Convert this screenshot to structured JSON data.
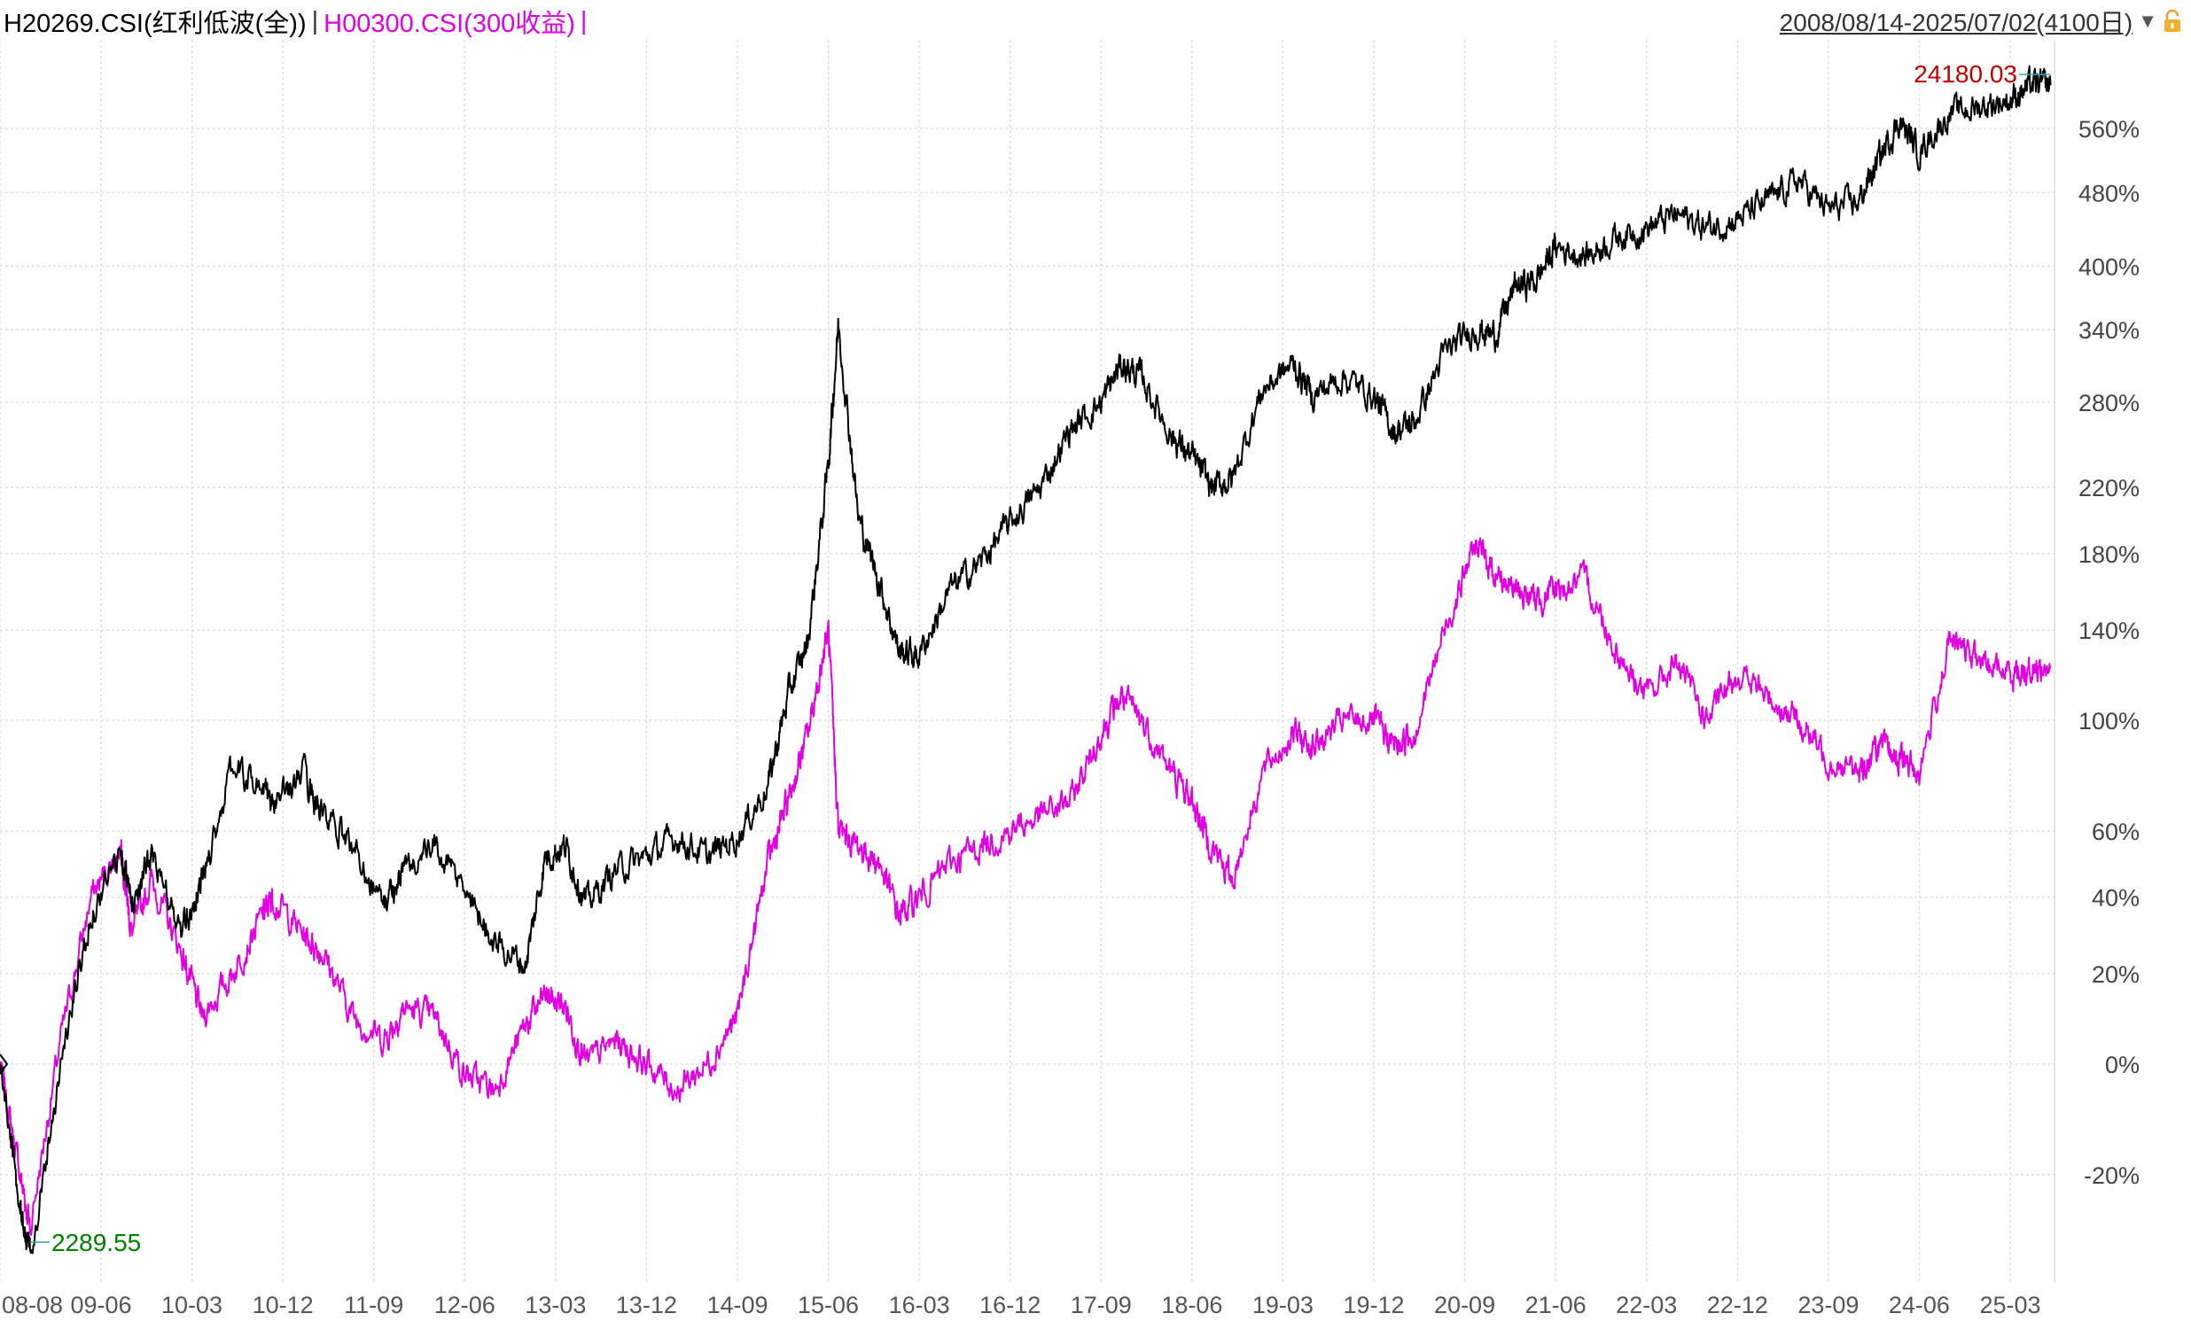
{
  "header": {
    "series1_name": "H20269.CSI(红利低波(全))",
    "separator": "|",
    "series2_name": "H00300.CSI(300收益)",
    "separator2": "|",
    "date_range": "2008/08/14-2025/07/02(4100日)",
    "dropdown_icon": "▼",
    "lock_icon": "lock-icon"
  },
  "colors": {
    "series1": "#000000",
    "series2": "#e000e0",
    "max_label": "#c00000",
    "min_label": "#008000",
    "grid": "#d9d9d9",
    "axis_text": "#555555"
  },
  "chart_data": {
    "type": "line",
    "y_scale": "log",
    "y_unit": "percent change from start",
    "ylim": [
      -33,
      620
    ],
    "y_ticks": [
      "560%",
      "480%",
      "400%",
      "340%",
      "280%",
      "220%",
      "180%",
      "140%",
      "100%",
      "60%",
      "40%",
      "20%",
      "0%",
      "-20%"
    ],
    "x_ticks": [
      "08-08",
      "09-06",
      "10-03",
      "10-12",
      "11-09",
      "12-06",
      "13-03",
      "13-12",
      "14-09",
      "15-06",
      "16-03",
      "16-12",
      "17-09",
      "18-06",
      "19-03",
      "19-12",
      "20-09",
      "21-06",
      "22-03",
      "22-12",
      "23-09",
      "24-06",
      "25-03"
    ],
    "grid": true,
    "annotations": {
      "max_value": "24180.03",
      "min_value": "2289.55"
    },
    "series": [
      {
        "name": "H20269.CSI(红利低波(全))",
        "x": [
          "2008-08",
          "2008-10",
          "2008-11",
          "2009-02",
          "2009-05",
          "2009-08",
          "2009-09",
          "2009-11",
          "2010-02",
          "2010-04",
          "2010-07",
          "2010-10",
          "2010-11",
          "2011-02",
          "2011-04",
          "2011-07",
          "2011-10",
          "2011-12",
          "2012-03",
          "2012-06",
          "2012-09",
          "2012-12",
          "2013-02",
          "2013-04",
          "2013-06",
          "2013-09",
          "2013-12",
          "2014-03",
          "2014-06",
          "2014-09",
          "2014-12",
          "2015-02",
          "2015-04",
          "2015-06",
          "2015-07",
          "2015-09",
          "2015-11",
          "2016-01",
          "2016-03",
          "2016-06",
          "2016-09",
          "2016-12",
          "2017-03",
          "2017-06",
          "2017-09",
          "2017-11",
          "2018-01",
          "2018-04",
          "2018-06",
          "2018-08",
          "2018-10",
          "2019-01",
          "2019-04",
          "2019-06",
          "2019-09",
          "2019-12",
          "2020-02",
          "2020-04",
          "2020-07",
          "2020-10",
          "2020-12",
          "2021-02",
          "2021-04",
          "2021-06",
          "2021-09",
          "2021-12",
          "2022-03",
          "2022-06",
          "2022-09",
          "2022-12",
          "2023-03",
          "2023-06",
          "2023-09",
          "2023-12",
          "2024-02",
          "2024-04",
          "2024-06",
          "2024-09",
          "2024-12",
          "2025-03",
          "2025-05",
          "2025-07"
        ],
        "values": [
          0,
          -25,
          -32,
          0,
          35,
          55,
          38,
          52,
          30,
          45,
          82,
          75,
          68,
          80,
          65,
          55,
          38,
          48,
          55,
          42,
          28,
          22,
          52,
          55,
          38,
          48,
          52,
          58,
          52,
          58,
          75,
          110,
          135,
          235,
          345,
          200,
          165,
          130,
          128,
          160,
          175,
          198,
          220,
          260,
          280,
          310,
          300,
          255,
          240,
          220,
          225,
          290,
          310,
          285,
          300,
          285,
          258,
          265,
          320,
          340,
          335,
          380,
          385,
          420,
          410,
          430,
          440,
          455,
          440,
          450,
          470,
          495,
          460,
          470,
          520,
          570,
          530,
          580,
          590,
          600,
          620,
          620
        ]
      },
      {
        "name": "H00300.CSI(300收益)",
        "x": [
          "2008-08",
          "2008-10",
          "2008-11",
          "2009-02",
          "2009-05",
          "2009-08",
          "2009-09",
          "2009-11",
          "2010-02",
          "2010-04",
          "2010-07",
          "2010-10",
          "2010-11",
          "2011-02",
          "2011-04",
          "2011-07",
          "2011-10",
          "2011-12",
          "2012-03",
          "2012-06",
          "2012-09",
          "2012-12",
          "2013-02",
          "2013-04",
          "2013-06",
          "2013-09",
          "2013-12",
          "2014-03",
          "2014-06",
          "2014-09",
          "2014-12",
          "2015-02",
          "2015-04",
          "2015-06",
          "2015-07",
          "2015-09",
          "2015-11",
          "2016-01",
          "2016-03",
          "2016-06",
          "2016-09",
          "2016-12",
          "2017-03",
          "2017-06",
          "2017-09",
          "2017-11",
          "2018-01",
          "2018-04",
          "2018-06",
          "2018-08",
          "2018-10",
          "2019-01",
          "2019-04",
          "2019-06",
          "2019-09",
          "2019-12",
          "2020-02",
          "2020-04",
          "2020-07",
          "2020-10",
          "2020-12",
          "2021-02",
          "2021-04",
          "2021-06",
          "2021-09",
          "2021-12",
          "2022-03",
          "2022-06",
          "2022-09",
          "2022-12",
          "2023-03",
          "2023-06",
          "2023-09",
          "2023-12",
          "2024-02",
          "2024-04",
          "2024-06",
          "2024-09",
          "2024-12",
          "2025-03",
          "2025-05",
          "2025-07"
        ],
        "values": [
          0,
          -20,
          -28,
          5,
          40,
          55,
          30,
          45,
          25,
          10,
          20,
          35,
          40,
          30,
          25,
          10,
          5,
          12,
          10,
          -2,
          -5,
          8,
          15,
          12,
          0,
          5,
          0,
          -5,
          0,
          10,
          50,
          70,
          95,
          140,
          60,
          55,
          50,
          35,
          40,
          50,
          55,
          60,
          65,
          70,
          95,
          110,
          100,
          80,
          70,
          55,
          45,
          80,
          95,
          90,
          100,
          100,
          90,
          95,
          140,
          185,
          170,
          160,
          155,
          160,
          165,
          130,
          110,
          125,
          100,
          120,
          110,
          100,
          85,
          80,
          90,
          85,
          80,
          135,
          125,
          120,
          122,
          122
        ]
      }
    ]
  }
}
